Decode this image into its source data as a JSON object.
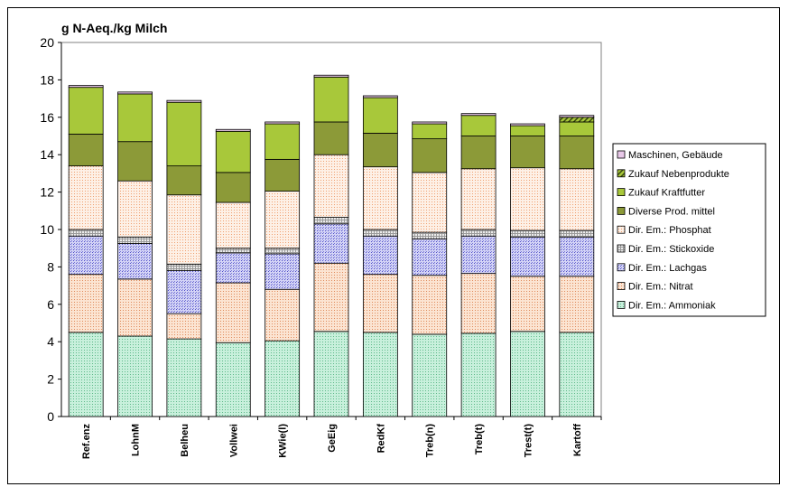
{
  "chart_data": {
    "type": "bar",
    "stacked": true,
    "ylabel": "g N-Aeq./kg Milch",
    "ylim": [
      0,
      20
    ],
    "yticks": [
      0,
      2,
      4,
      6,
      8,
      10,
      12,
      14,
      16,
      18,
      20
    ],
    "legend_position": "right",
    "categories": [
      "Ref.enz",
      "LohnM",
      "Belheu",
      "Vollwei",
      "KWie(l)",
      "GeEig",
      "RedKf",
      "Treb(n)",
      "Treb(t)",
      "Trest(t)",
      "Kartoff"
    ],
    "series": [
      {
        "name": "Dir. Em.: Ammoniak",
        "color": "#c8f0dc",
        "pattern": "dots-green",
        "values": [
          4.5,
          4.3,
          4.15,
          3.95,
          4.05,
          4.55,
          4.5,
          4.4,
          4.45,
          4.55,
          4.5
        ]
      },
      {
        "name": "Dir. Em.: Nitrat",
        "color": "#fbe4d2",
        "pattern": "dots-orange",
        "values": [
          3.1,
          3.05,
          1.35,
          3.2,
          2.75,
          3.65,
          3.1,
          3.15,
          3.2,
          2.95,
          3.0
        ]
      },
      {
        "name": "Dir. Em.: Lachgas",
        "color": "#d4d4f6",
        "pattern": "dots-blue",
        "values": [
          2.05,
          1.9,
          2.3,
          1.6,
          1.9,
          2.1,
          2.05,
          1.95,
          2.0,
          2.1,
          2.1
        ]
      },
      {
        "name": "Dir. Em.: Stickoxide",
        "color": "#e4e4e4",
        "pattern": "grid-gray",
        "values": [
          0.35,
          0.35,
          0.35,
          0.25,
          0.3,
          0.35,
          0.35,
          0.35,
          0.35,
          0.35,
          0.35
        ]
      },
      {
        "name": "Dir. Em.: Phosphat",
        "color": "#fdf0e6",
        "pattern": "dots-peach",
        "values": [
          3.4,
          3.0,
          3.7,
          2.45,
          3.05,
          3.35,
          3.35,
          3.2,
          3.25,
          3.35,
          3.3
        ]
      },
      {
        "name": "Diverse Prod. mittel",
        "color": "#8c9a38",
        "pattern": "solid",
        "values": [
          1.7,
          2.1,
          1.55,
          1.6,
          1.7,
          1.75,
          1.8,
          1.8,
          1.75,
          1.7,
          1.75
        ]
      },
      {
        "name": "Zukauf Kraftfutter",
        "color": "#a8c83a",
        "pattern": "solid",
        "values": [
          2.5,
          2.55,
          3.4,
          2.2,
          1.9,
          2.4,
          1.9,
          0.8,
          1.1,
          0.55,
          0.75
        ]
      },
      {
        "name": "Zukauf Nebenprodukte",
        "color": "#a8c83a",
        "pattern": "hatch",
        "values": [
          0,
          0,
          0,
          0,
          0,
          0,
          0,
          0,
          0,
          0,
          0.25
        ]
      },
      {
        "name": "Maschinen, Gebäude",
        "color": "#e8c8e8",
        "pattern": "solid",
        "values": [
          0.1,
          0.1,
          0.1,
          0.1,
          0.1,
          0.1,
          0.1,
          0.1,
          0.1,
          0.1,
          0.1
        ]
      }
    ]
  }
}
